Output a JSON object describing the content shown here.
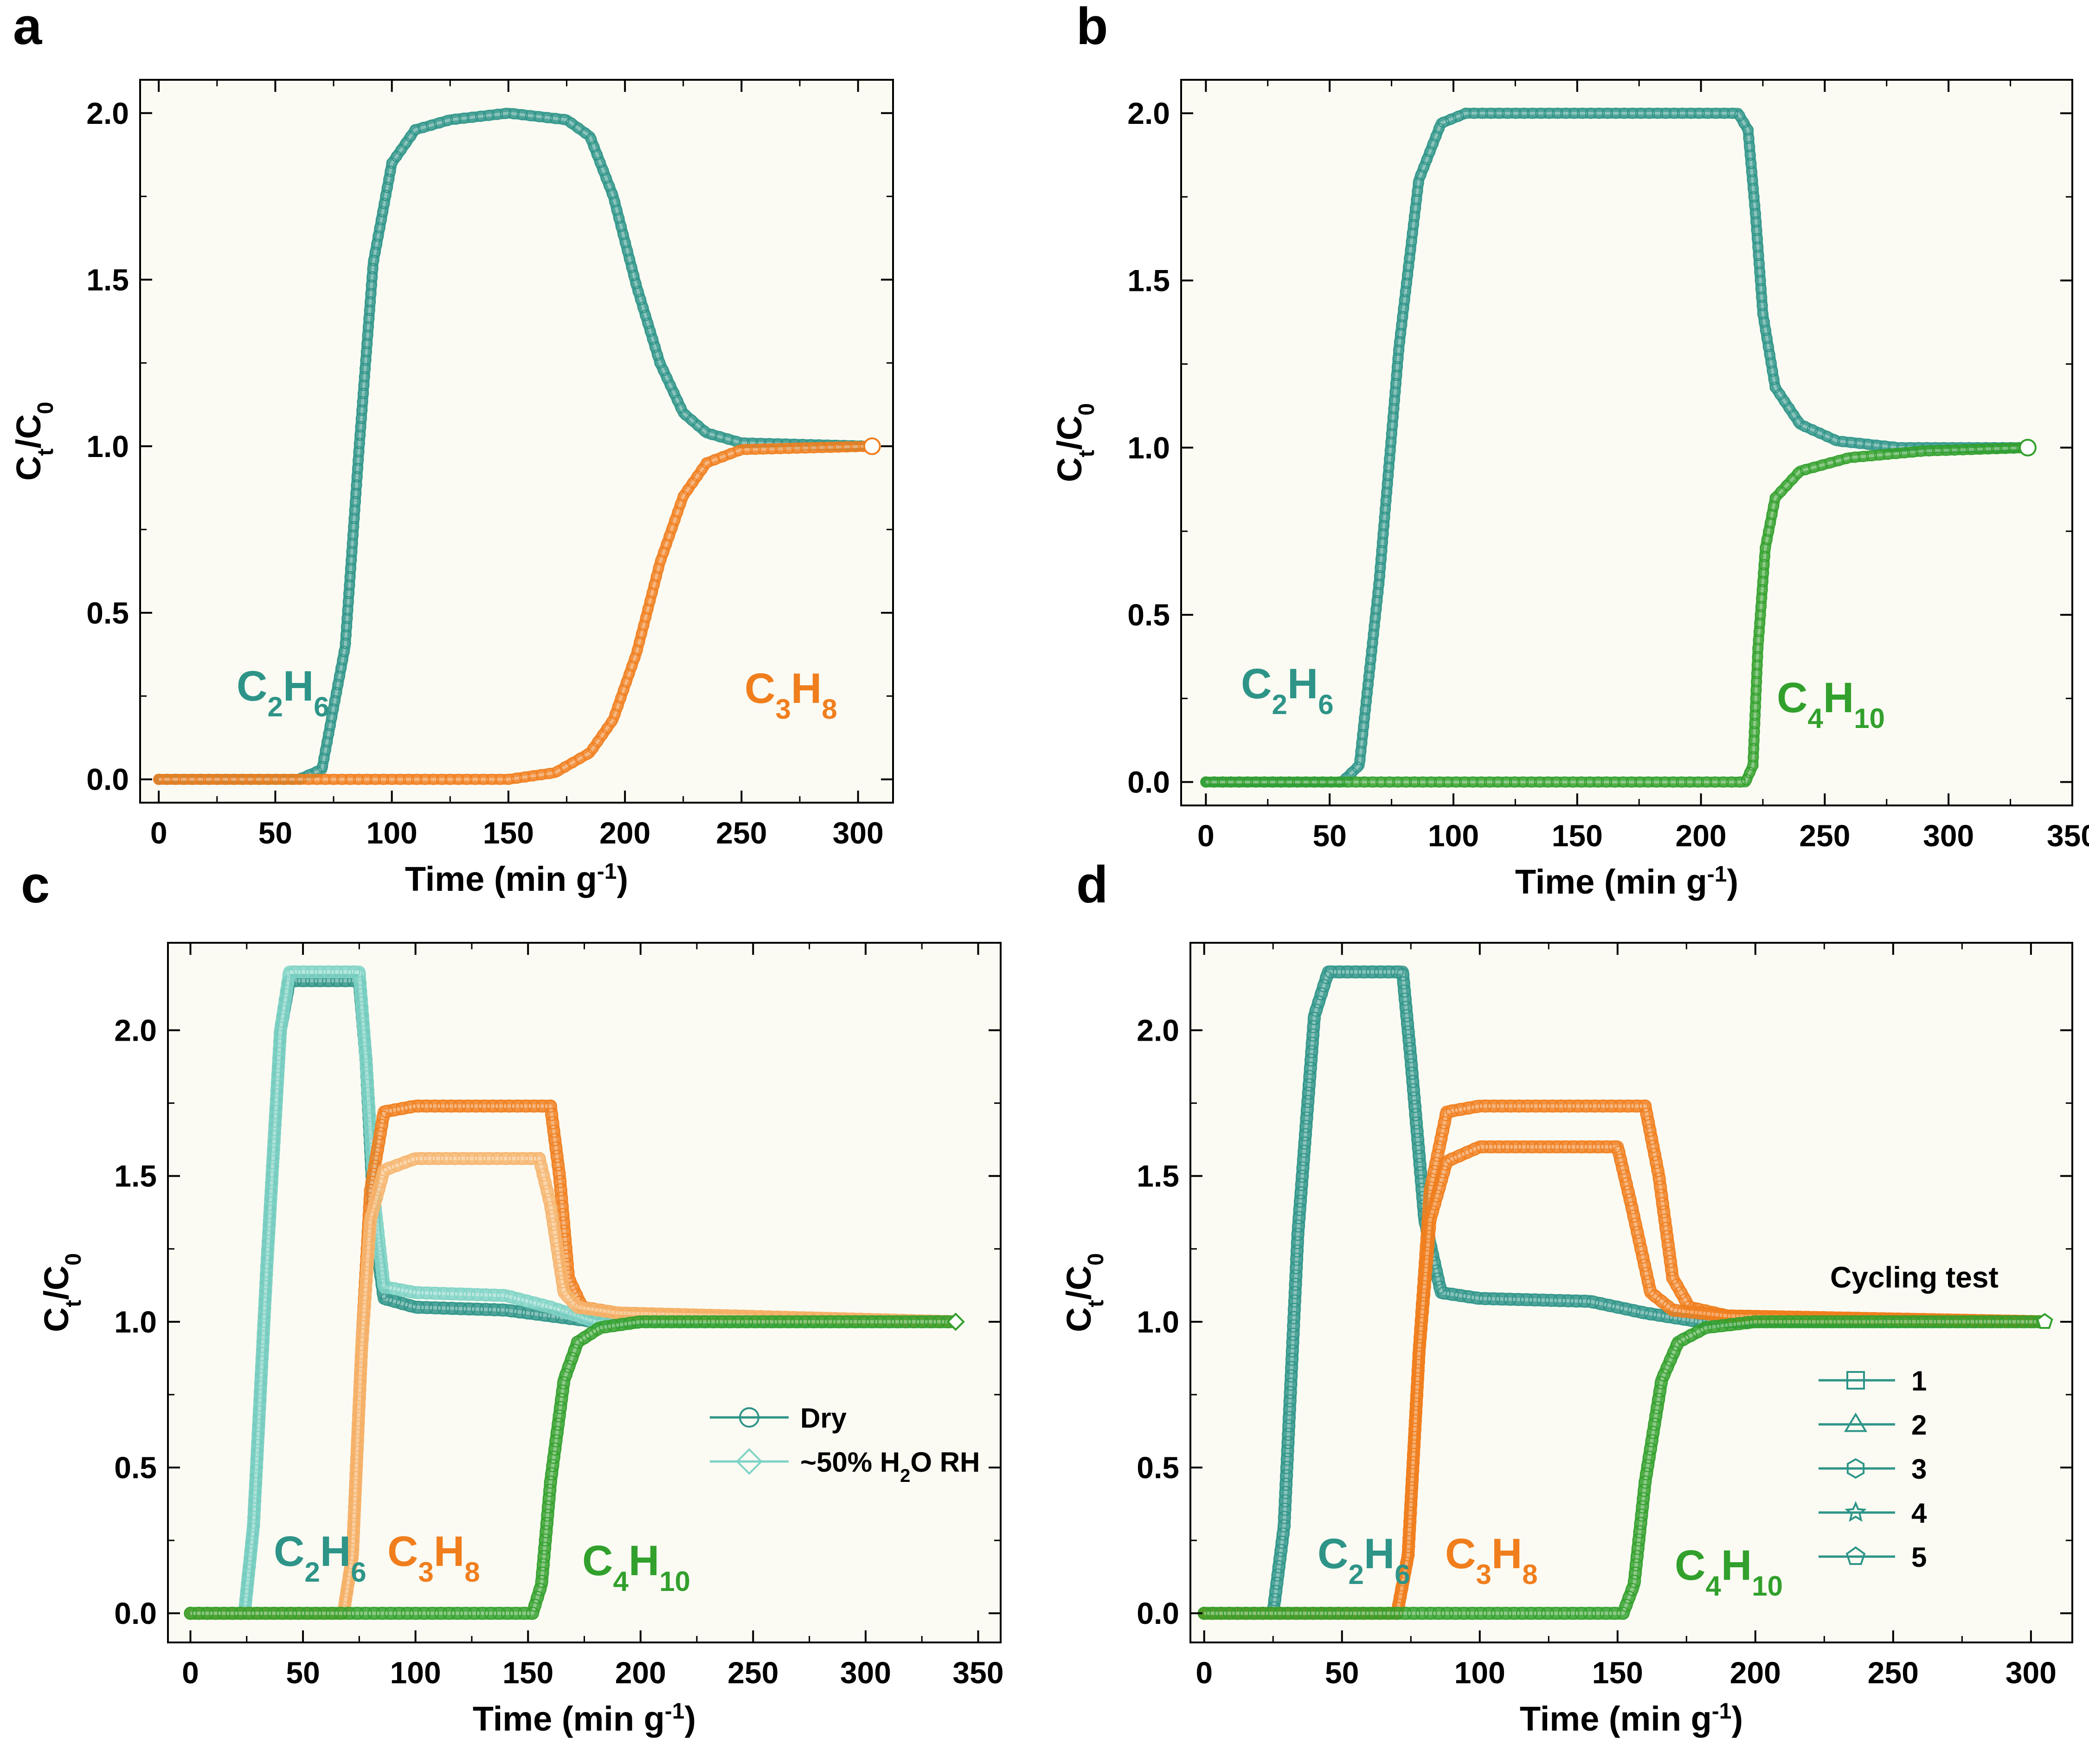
{
  "figure": {
    "panel_letters": [
      "a",
      "b",
      "c",
      "d"
    ]
  },
  "colors": {
    "C2H6": "#2e9488",
    "C2H6_light": "#7fd3c6",
    "C3H8": "#f07e1d",
    "C3H8_light": "#f6b56f",
    "C4H10": "#32a02c",
    "plot_bg": "#fbfbf3"
  },
  "chart_data": [
    {
      "panel": "a",
      "type": "line",
      "title": "",
      "xlabel": "Time (min g",
      "xlabel_sup": "-1",
      "xlabel_end": ")",
      "ylabel": "C",
      "ylabel_sub1": "t",
      "ylabel_mid": "/C",
      "ylabel_sub2": "0",
      "xlim": [
        -8,
        315
      ],
      "ylim": [
        -0.07,
        2.1
      ],
      "xticks": [
        0,
        50,
        100,
        150,
        200,
        250,
        300
      ],
      "yticks": [
        0.0,
        0.5,
        1.0,
        1.5,
        2.0
      ],
      "ytick_labels": [
        "0.0",
        "0.5",
        "1.0",
        "1.5",
        "2.0"
      ],
      "series": [
        {
          "name": "C2H6",
          "color_key": "C2H6",
          "points": [
            [
              0,
              0
            ],
            [
              60,
              0
            ],
            [
              70,
              0.03
            ],
            [
              80,
              0.4
            ],
            [
              86,
              1.0
            ],
            [
              92,
              1.55
            ],
            [
              100,
              1.85
            ],
            [
              110,
              1.95
            ],
            [
              125,
              1.98
            ],
            [
              150,
              2.0
            ],
            [
              175,
              1.98
            ],
            [
              185,
              1.93
            ],
            [
              195,
              1.75
            ],
            [
              205,
              1.48
            ],
            [
              215,
              1.25
            ],
            [
              225,
              1.1
            ],
            [
              235,
              1.04
            ],
            [
              250,
              1.01
            ],
            [
              306,
              1.0
            ]
          ]
        },
        {
          "name": "C3H8",
          "color_key": "C3H8",
          "points": [
            [
              0,
              0
            ],
            [
              150,
              0
            ],
            [
              170,
              0.02
            ],
            [
              185,
              0.08
            ],
            [
              195,
              0.18
            ],
            [
              205,
              0.38
            ],
            [
              215,
              0.65
            ],
            [
              225,
              0.85
            ],
            [
              235,
              0.95
            ],
            [
              250,
              0.99
            ],
            [
              306,
              1.0
            ]
          ]
        }
      ],
      "annotations": [
        {
          "series": "C2H6",
          "main1": "C",
          "sub1": "2",
          "main2": "H",
          "sub2": "6",
          "color_key": "C2H6"
        },
        {
          "series": "C3H8",
          "main1": "C",
          "sub1": "3",
          "main2": "H",
          "sub2": "8",
          "color_key": "C3H8"
        }
      ]
    },
    {
      "panel": "b",
      "type": "line",
      "title": "",
      "xlabel": "Time (min g",
      "xlabel_sup": "-1",
      "xlabel_end": ")",
      "ylabel": "C",
      "ylabel_sub1": "t",
      "ylabel_mid": "/C",
      "ylabel_sub2": "0",
      "xlim": [
        -10,
        350
      ],
      "ylim": [
        -0.07,
        2.1
      ],
      "xticks": [
        0,
        50,
        100,
        150,
        200,
        250,
        300,
        350
      ],
      "yticks": [
        0.0,
        0.5,
        1.0,
        1.5,
        2.0
      ],
      "ytick_labels": [
        "0.0",
        "0.5",
        "1.0",
        "1.5",
        "2.0"
      ],
      "series": [
        {
          "name": "C2H6",
          "color_key": "C2H6",
          "points": [
            [
              0,
              0
            ],
            [
              55,
              0
            ],
            [
              62,
              0.05
            ],
            [
              70,
              0.6
            ],
            [
              78,
              1.3
            ],
            [
              86,
              1.8
            ],
            [
              95,
              1.97
            ],
            [
              105,
              2.0
            ],
            [
              215,
              2.0
            ],
            [
              219,
              1.95
            ],
            [
              222,
              1.7
            ],
            [
              225,
              1.4
            ],
            [
              230,
              1.18
            ],
            [
              240,
              1.07
            ],
            [
              255,
              1.02
            ],
            [
              280,
              1.0
            ],
            [
              332,
              1.0
            ]
          ]
        },
        {
          "name": "C4H10",
          "color_key": "C4H10",
          "points": [
            [
              0,
              0
            ],
            [
              218,
              0
            ],
            [
              221,
              0.05
            ],
            [
              223,
              0.4
            ],
            [
              226,
              0.7
            ],
            [
              230,
              0.85
            ],
            [
              240,
              0.93
            ],
            [
              260,
              0.97
            ],
            [
              290,
              0.99
            ],
            [
              332,
              1.0
            ]
          ]
        }
      ],
      "annotations": [
        {
          "series": "C2H6",
          "main1": "C",
          "sub1": "2",
          "main2": "H",
          "sub2": "6",
          "color_key": "C2H6"
        },
        {
          "series": "C4H10",
          "main1": "C",
          "sub1": "4",
          "main2": "H",
          "sub2": "10",
          "color_key": "C4H10"
        }
      ]
    },
    {
      "panel": "c",
      "type": "line",
      "title": "",
      "xlabel": "Time (min g",
      "xlabel_sup": "-1",
      "xlabel_end": ")",
      "ylabel": "C",
      "ylabel_sub1": "t",
      "ylabel_mid": "/C",
      "ylabel_sub2": "0",
      "xlim": [
        -10,
        360
      ],
      "ylim": [
        -0.1,
        2.3
      ],
      "xticks": [
        0,
        50,
        100,
        150,
        200,
        250,
        300,
        350
      ],
      "yticks": [
        0.0,
        0.5,
        1.0,
        1.5,
        2.0
      ],
      "ytick_labels": [
        "0.0",
        "0.5",
        "1.0",
        "1.5",
        "2.0"
      ],
      "series": [
        {
          "name": "C2H6 Dry",
          "color_key": "C2H6",
          "points": [
            [
              0,
              0
            ],
            [
              24,
              0
            ],
            [
              28,
              0.3
            ],
            [
              34,
              1.2
            ],
            [
              40,
              2.0
            ],
            [
              44,
              2.17
            ],
            [
              75,
              2.17
            ],
            [
              78,
              1.9
            ],
            [
              82,
              1.3
            ],
            [
              86,
              1.08
            ],
            [
              100,
              1.05
            ],
            [
              140,
              1.04
            ],
            [
              160,
              1.02
            ],
            [
              180,
              1.0
            ],
            [
              340,
              1.0
            ]
          ]
        },
        {
          "name": "C2H6 Wet",
          "color_key": "C2H6_light",
          "points": [
            [
              0,
              0
            ],
            [
              24,
              0
            ],
            [
              28,
              0.3
            ],
            [
              34,
              1.2
            ],
            [
              40,
              2.0
            ],
            [
              44,
              2.2
            ],
            [
              75,
              2.2
            ],
            [
              78,
              1.9
            ],
            [
              82,
              1.4
            ],
            [
              86,
              1.12
            ],
            [
              100,
              1.1
            ],
            [
              140,
              1.09
            ],
            [
              160,
              1.05
            ],
            [
              180,
              1.0
            ],
            [
              340,
              1.0
            ]
          ]
        },
        {
          "name": "C3H8 Dry",
          "color_key": "C3H8",
          "points": [
            [
              0,
              0
            ],
            [
              68,
              0
            ],
            [
              72,
              0.2
            ],
            [
              76,
              0.9
            ],
            [
              80,
              1.45
            ],
            [
              86,
              1.72
            ],
            [
              100,
              1.74
            ],
            [
              160,
              1.74
            ],
            [
              164,
              1.5
            ],
            [
              168,
              1.15
            ],
            [
              174,
              1.05
            ],
            [
              190,
              1.03
            ],
            [
              340,
              1.0
            ]
          ]
        },
        {
          "name": "C3H8 Wet",
          "color_key": "C3H8_light",
          "points": [
            [
              0,
              0
            ],
            [
              68,
              0
            ],
            [
              72,
              0.2
            ],
            [
              76,
              0.9
            ],
            [
              80,
              1.35
            ],
            [
              86,
              1.52
            ],
            [
              100,
              1.56
            ],
            [
              155,
              1.56
            ],
            [
              160,
              1.4
            ],
            [
              166,
              1.1
            ],
            [
              172,
              1.05
            ],
            [
              190,
              1.03
            ],
            [
              340,
              1.0
            ]
          ]
        },
        {
          "name": "C4H10",
          "color_key": "C4H10",
          "points": [
            [
              0,
              0
            ],
            [
              152,
              0
            ],
            [
              156,
              0.1
            ],
            [
              160,
              0.45
            ],
            [
              166,
              0.8
            ],
            [
              172,
              0.93
            ],
            [
              182,
              0.98
            ],
            [
              200,
              1.0
            ],
            [
              340,
              1.0
            ]
          ]
        }
      ],
      "legend": {
        "position": "center-right",
        "entries": [
          {
            "label": "Dry",
            "label_sub": "",
            "label_end": "",
            "marker": "circle",
            "color_key": "C2H6"
          },
          {
            "label": "~50% H",
            "label_sub": "2",
            "label_end": "O RH",
            "marker": "diamond",
            "color_key": "C2H6_light"
          }
        ]
      },
      "annotations": [
        {
          "series": "C2H6",
          "main1": "C",
          "sub1": "2",
          "main2": "H",
          "sub2": "6",
          "color_key": "C2H6"
        },
        {
          "series": "C3H8",
          "main1": "C",
          "sub1": "3",
          "main2": "H",
          "sub2": "8",
          "color_key": "C3H8"
        },
        {
          "series": "C4H10",
          "main1": "C",
          "sub1": "4",
          "main2": "H",
          "sub2": "10",
          "color_key": "C4H10"
        }
      ]
    },
    {
      "panel": "d",
      "type": "line",
      "title": "",
      "xlabel": "Time (min g",
      "xlabel_sup": "-1",
      "xlabel_end": ")",
      "ylabel": "C",
      "ylabel_sub1": "t",
      "ylabel_mid": "/C",
      "ylabel_sub2": "0",
      "xlim": [
        -5,
        315
      ],
      "ylim": [
        -0.1,
        2.3
      ],
      "xticks": [
        0,
        50,
        100,
        150,
        200,
        250,
        300
      ],
      "yticks": [
        0.0,
        0.5,
        1.0,
        1.5,
        2.0
      ],
      "ytick_labels": [
        "0.0",
        "0.5",
        "1.0",
        "1.5",
        "2.0"
      ],
      "series": [
        {
          "name": "C2H6",
          "color_key": "C2H6",
          "points": [
            [
              0,
              0
            ],
            [
              25,
              0
            ],
            [
              29,
              0.3
            ],
            [
              34,
              1.3
            ],
            [
              40,
              2.05
            ],
            [
              45,
              2.2
            ],
            [
              72,
              2.2
            ],
            [
              75,
              1.9
            ],
            [
              80,
              1.35
            ],
            [
              86,
              1.1
            ],
            [
              100,
              1.08
            ],
            [
              140,
              1.07
            ],
            [
              160,
              1.03
            ],
            [
              180,
              1.0
            ],
            [
              305,
              1.0
            ]
          ]
        },
        {
          "name": "C3H8 high",
          "color_key": "C3H8",
          "points": [
            [
              0,
              0
            ],
            [
              70,
              0
            ],
            [
              74,
              0.2
            ],
            [
              78,
              0.9
            ],
            [
              82,
              1.45
            ],
            [
              88,
              1.72
            ],
            [
              100,
              1.74
            ],
            [
              160,
              1.74
            ],
            [
              165,
              1.5
            ],
            [
              170,
              1.15
            ],
            [
              176,
              1.05
            ],
            [
              190,
              1.02
            ],
            [
              305,
              1.0
            ]
          ]
        },
        {
          "name": "C3H8 low",
          "color_key": "C3H8",
          "points": [
            [
              0,
              0
            ],
            [
              70,
              0
            ],
            [
              74,
              0.2
            ],
            [
              78,
              0.9
            ],
            [
              82,
              1.35
            ],
            [
              88,
              1.55
            ],
            [
              100,
              1.6
            ],
            [
              150,
              1.6
            ],
            [
              155,
              1.4
            ],
            [
              162,
              1.1
            ],
            [
              170,
              1.04
            ],
            [
              190,
              1.02
            ],
            [
              305,
              1.0
            ]
          ]
        },
        {
          "name": "C4H10",
          "color_key": "C4H10",
          "points": [
            [
              0,
              0
            ],
            [
              152,
              0
            ],
            [
              156,
              0.1
            ],
            [
              160,
              0.45
            ],
            [
              166,
              0.8
            ],
            [
              172,
              0.93
            ],
            [
              182,
              0.98
            ],
            [
              200,
              1.0
            ],
            [
              305,
              1.0
            ]
          ]
        }
      ],
      "legend": {
        "title": "Cycling test",
        "position": "center-right",
        "entries": [
          {
            "label": "1",
            "marker": "square",
            "color_key": "C2H6"
          },
          {
            "label": "2",
            "marker": "triangle",
            "color_key": "C2H6"
          },
          {
            "label": "3",
            "marker": "hexagon",
            "color_key": "C2H6"
          },
          {
            "label": "4",
            "marker": "star",
            "color_key": "C2H6"
          },
          {
            "label": "5",
            "marker": "pentagon",
            "color_key": "C2H6"
          }
        ]
      },
      "annotations": [
        {
          "series": "C2H6",
          "main1": "C",
          "sub1": "2",
          "main2": "H",
          "sub2": "6",
          "color_key": "C2H6"
        },
        {
          "series": "C3H8",
          "main1": "C",
          "sub1": "3",
          "main2": "H",
          "sub2": "8",
          "color_key": "C3H8"
        },
        {
          "series": "C4H10",
          "main1": "C",
          "sub1": "4",
          "main2": "H",
          "sub2": "10",
          "color_key": "C4H10"
        }
      ]
    }
  ]
}
